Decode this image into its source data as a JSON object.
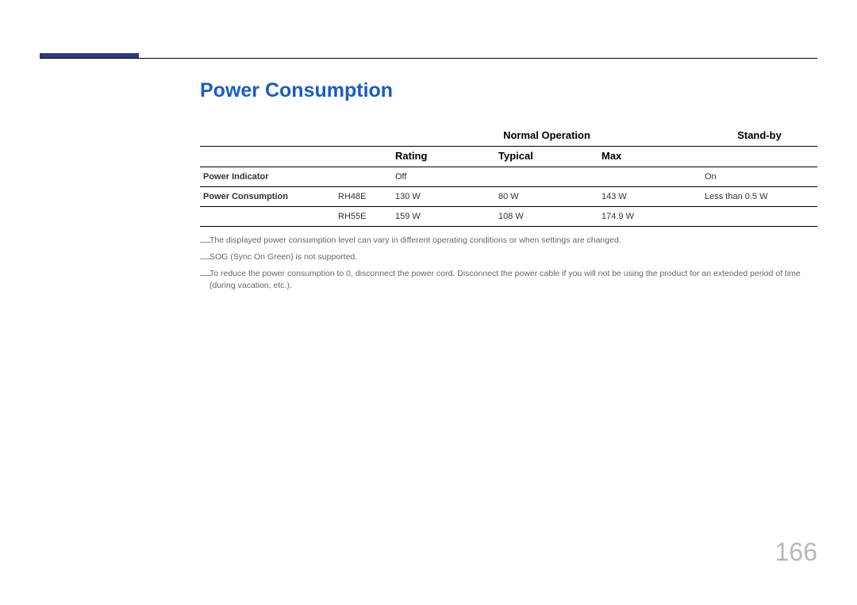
{
  "page": {
    "title": "Power Consumption",
    "page_number": "166",
    "accent_color": "#2e3a7a",
    "title_color": "#1a5cc4"
  },
  "table": {
    "header_normal": "Normal Operation",
    "header_standby": "Stand-by",
    "header_rating": "Rating",
    "header_typical": "Typical",
    "header_max": "Max",
    "rows": {
      "indicator": {
        "label": "Power Indicator",
        "normal_value": "Off",
        "standby_value": "On"
      },
      "consumption": {
        "label": "Power Consumption",
        "model1": {
          "name": "RH48E",
          "rating": "130 W",
          "typical": "80 W",
          "max": "143 W"
        },
        "model2": {
          "name": "RH55E",
          "rating": "159 W",
          "typical": "108 W",
          "max": "174.9 W"
        },
        "standby_value": "Less than 0.5 W"
      }
    }
  },
  "notes": {
    "n1": "The displayed power consumption level can vary in different operating conditions or when settings are changed.",
    "n2": "SOG (Sync On Green) is not supported.",
    "n3": "To reduce the power consumption to 0, disconnect the power cord. Disconnect the power cable if you will not be using the product for an extended period of time (during vacation, etc.)."
  }
}
